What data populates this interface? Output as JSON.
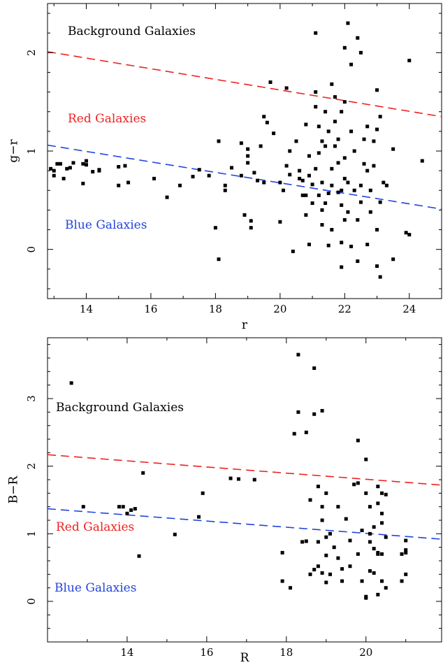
{
  "chart_data": [
    {
      "type": "scatter",
      "xlabel": "r",
      "ylabel": "g−r",
      "xlim": [
        12.8,
        25.0
      ],
      "ylim": [
        -0.5,
        2.5
      ],
      "xticks": [
        14,
        16,
        18,
        20,
        22,
        24
      ],
      "yticks": [
        0,
        1,
        2
      ],
      "annotations": [
        {
          "text": "Background Galaxies",
          "color": "#000000"
        },
        {
          "text": "Red Galaxies",
          "color": "#ee2222"
        },
        {
          "text": "Blue Galaxies",
          "color": "#2244dd"
        }
      ],
      "lines": [
        {
          "name": "red-boundary",
          "color": "#ee2222",
          "x": [
            12.8,
            25.0
          ],
          "y": [
            2.01,
            1.35
          ]
        },
        {
          "name": "blue-boundary",
          "color": "#2244dd",
          "x": [
            12.8,
            25.0
          ],
          "y": [
            1.06,
            0.41
          ]
        }
      ],
      "points": [
        [
          12.9,
          0.82
        ],
        [
          13.0,
          0.8
        ],
        [
          13.1,
          0.87
        ],
        [
          13.2,
          0.87
        ],
        [
          13.0,
          0.75
        ],
        [
          13.3,
          0.72
        ],
        [
          13.4,
          0.82
        ],
        [
          13.5,
          0.83
        ],
        [
          13.6,
          0.88
        ],
        [
          13.9,
          0.87
        ],
        [
          14.0,
          0.9
        ],
        [
          14.0,
          0.86
        ],
        [
          13.9,
          0.67
        ],
        [
          14.2,
          0.79
        ],
        [
          14.4,
          0.8
        ],
        [
          14.4,
          0.81
        ],
        [
          15.0,
          0.84
        ],
        [
          15.0,
          0.65
        ],
        [
          15.2,
          0.85
        ],
        [
          15.3,
          0.68
        ],
        [
          16.1,
          0.72
        ],
        [
          16.5,
          0.53
        ],
        [
          16.9,
          0.65
        ],
        [
          17.3,
          0.74
        ],
        [
          17.5,
          0.81
        ],
        [
          17.8,
          0.75
        ],
        [
          18.0,
          0.22
        ],
        [
          18.1,
          1.1
        ],
        [
          18.1,
          -0.1
        ],
        [
          18.3,
          0.6
        ],
        [
          18.3,
          0.65
        ],
        [
          18.5,
          0.83
        ],
        [
          18.8,
          0.75
        ],
        [
          18.8,
          1.08
        ],
        [
          18.9,
          0.35
        ],
        [
          19.0,
          0.88
        ],
        [
          19.0,
          0.95
        ],
        [
          19.0,
          1.02
        ],
        [
          19.1,
          0.29
        ],
        [
          19.1,
          0.22
        ],
        [
          19.2,
          0.78
        ],
        [
          19.3,
          0.7
        ],
        [
          19.4,
          1.05
        ],
        [
          19.5,
          1.35
        ],
        [
          19.5,
          0.68
        ],
        [
          19.6,
          1.29
        ],
        [
          19.7,
          1.7
        ],
        [
          19.8,
          1.18
        ],
        [
          20.0,
          0.28
        ],
        [
          20.0,
          0.68
        ],
        [
          20.1,
          0.6
        ],
        [
          20.2,
          1.64
        ],
        [
          20.2,
          0.85
        ],
        [
          20.3,
          1.0
        ],
        [
          20.4,
          -0.02
        ],
        [
          20.5,
          1.1
        ],
        [
          20.6,
          0.72
        ],
        [
          20.6,
          0.8
        ],
        [
          20.7,
          0.55
        ],
        [
          20.7,
          0.7
        ],
        [
          20.8,
          0.35
        ],
        [
          20.8,
          0.55
        ],
        [
          20.8,
          1.27
        ],
        [
          20.9,
          0.05
        ],
        [
          20.9,
          0.75
        ],
        [
          21.0,
          0.47
        ],
        [
          21.0,
          0.66
        ],
        [
          21.1,
          1.6
        ],
        [
          21.1,
          1.45
        ],
        [
          21.1,
          0.82
        ],
        [
          21.1,
          2.2
        ],
        [
          21.2,
          1.25
        ],
        [
          21.2,
          0.98
        ],
        [
          21.3,
          0.25
        ],
        [
          21.3,
          0.68
        ],
        [
          21.3,
          1.1
        ],
        [
          21.3,
          0.4
        ],
        [
          21.4,
          1.05
        ],
        [
          21.4,
          1.4
        ],
        [
          21.4,
          0.47
        ],
        [
          21.5,
          0.04
        ],
        [
          21.5,
          0.57
        ],
        [
          21.5,
          1.2
        ],
        [
          21.6,
          0.65
        ],
        [
          21.6,
          1.68
        ],
        [
          21.6,
          0.82
        ],
        [
          21.7,
          1.55
        ],
        [
          21.7,
          1.05
        ],
        [
          21.7,
          1.3
        ],
        [
          21.8,
          0.58
        ],
        [
          21.8,
          0.88
        ],
        [
          21.8,
          1.12
        ],
        [
          21.9,
          1.4
        ],
        [
          21.9,
          0.45
        ],
        [
          21.9,
          -0.18
        ],
        [
          21.9,
          0.07
        ],
        [
          22.0,
          2.05
        ],
        [
          22.0,
          1.5
        ],
        [
          22.0,
          0.93
        ],
        [
          22.0,
          0.72
        ],
        [
          22.1,
          2.3
        ],
        [
          22.1,
          0.68
        ],
        [
          22.1,
          0.38
        ],
        [
          22.2,
          0.03
        ],
        [
          22.2,
          1.88
        ],
        [
          22.2,
          1.2
        ],
        [
          22.3,
          1.0
        ],
        [
          22.3,
          0.6
        ],
        [
          22.4,
          -0.12
        ],
        [
          22.4,
          0.3
        ],
        [
          22.4,
          2.15
        ],
        [
          22.5,
          2.0
        ],
        [
          22.5,
          0.65
        ],
        [
          22.5,
          0.48
        ],
        [
          22.6,
          1.12
        ],
        [
          22.6,
          0.87
        ],
        [
          22.7,
          1.25
        ],
        [
          22.7,
          0.8
        ],
        [
          22.8,
          0.6
        ],
        [
          22.8,
          0.38
        ],
        [
          22.9,
          1.1
        ],
        [
          22.9,
          0.85
        ],
        [
          23.0,
          1.62
        ],
        [
          23.0,
          1.22
        ],
        [
          23.0,
          -0.17
        ],
        [
          23.1,
          1.35
        ],
        [
          23.1,
          -0.28
        ],
        [
          23.1,
          0.48
        ],
        [
          23.2,
          0.68
        ],
        [
          23.3,
          0.65
        ],
        [
          23.5,
          1.02
        ],
        [
          23.5,
          -0.1
        ],
        [
          23.9,
          0.17
        ],
        [
          24.0,
          1.92
        ],
        [
          24.0,
          0.15
        ],
        [
          24.4,
          0.9
        ],
        [
          20.3,
          0.76
        ],
        [
          21.2,
          0.55
        ],
        [
          20.9,
          0.95
        ],
        [
          22.0,
          0.3
        ],
        [
          21.6,
          0.2
        ],
        [
          22.7,
          0.05
        ],
        [
          23.0,
          0.2
        ],
        [
          21.9,
          0.6
        ]
      ]
    },
    {
      "type": "scatter",
      "xlabel": "R",
      "ylabel": "B−R",
      "xlim": [
        12.0,
        21.9
      ],
      "ylim": [
        -0.6,
        3.9
      ],
      "xticks": [
        14,
        16,
        18,
        20
      ],
      "yticks": [
        0,
        1,
        2,
        3
      ],
      "annotations": [
        {
          "text": "Background Galaxies",
          "color": "#000000"
        },
        {
          "text": "Red Galaxies",
          "color": "#ee2222"
        },
        {
          "text": "Blue Galaxies",
          "color": "#2244dd"
        }
      ],
      "lines": [
        {
          "name": "red-boundary",
          "color": "#ee2222",
          "x": [
            12.0,
            21.9
          ],
          "y": [
            2.17,
            1.72
          ]
        },
        {
          "name": "blue-boundary",
          "color": "#2244dd",
          "x": [
            12.0,
            21.9
          ],
          "y": [
            1.37,
            0.92
          ]
        }
      ],
      "points": [
        [
          12.6,
          3.23
        ],
        [
          12.9,
          1.4
        ],
        [
          13.8,
          1.4
        ],
        [
          13.9,
          1.4
        ],
        [
          14.0,
          1.3
        ],
        [
          14.1,
          1.35
        ],
        [
          14.2,
          1.37
        ],
        [
          14.3,
          0.67
        ],
        [
          14.4,
          1.9
        ],
        [
          15.2,
          0.99
        ],
        [
          15.8,
          1.25
        ],
        [
          15.9,
          1.6
        ],
        [
          16.6,
          1.82
        ],
        [
          16.8,
          1.81
        ],
        [
          17.2,
          1.8
        ],
        [
          17.9,
          0.72
        ],
        [
          17.9,
          0.3
        ],
        [
          18.1,
          0.2
        ],
        [
          18.2,
          2.48
        ],
        [
          18.3,
          3.65
        ],
        [
          18.3,
          2.8
        ],
        [
          18.4,
          0.88
        ],
        [
          18.5,
          0.89
        ],
        [
          18.5,
          2.5
        ],
        [
          18.6,
          0.4
        ],
        [
          18.6,
          1.5
        ],
        [
          18.7,
          0.47
        ],
        [
          18.7,
          3.45
        ],
        [
          18.7,
          2.77
        ],
        [
          18.8,
          0.88
        ],
        [
          18.8,
          1.7
        ],
        [
          18.8,
          0.52
        ],
        [
          18.9,
          2.82
        ],
        [
          18.9,
          0.42
        ],
        [
          18.9,
          1.4
        ],
        [
          18.9,
          1.2
        ],
        [
          19.0,
          1.6
        ],
        [
          19.0,
          0.28
        ],
        [
          19.0,
          0.68
        ],
        [
          19.0,
          0.95
        ],
        [
          19.1,
          1.0
        ],
        [
          19.1,
          0.4
        ],
        [
          19.2,
          0.8
        ],
        [
          19.3,
          1.4
        ],
        [
          19.3,
          0.64
        ],
        [
          19.4,
          0.48
        ],
        [
          19.4,
          0.3
        ],
        [
          19.5,
          1.22
        ],
        [
          19.6,
          0.9
        ],
        [
          19.6,
          0.52
        ],
        [
          19.7,
          1.73
        ],
        [
          19.8,
          2.38
        ],
        [
          19.8,
          1.75
        ],
        [
          19.8,
          0.7
        ],
        [
          19.9,
          0.3
        ],
        [
          19.9,
          1.05
        ],
        [
          20.0,
          0.05
        ],
        [
          20.0,
          2.1
        ],
        [
          20.0,
          1.6
        ],
        [
          20.0,
          0.07
        ],
        [
          20.1,
          1.4
        ],
        [
          20.1,
          1.0
        ],
        [
          20.1,
          0.88
        ],
        [
          20.1,
          0.45
        ],
        [
          20.2,
          1.1
        ],
        [
          20.2,
          0.78
        ],
        [
          20.2,
          0.42
        ],
        [
          20.3,
          1.7
        ],
        [
          20.3,
          1.45
        ],
        [
          20.3,
          0.72
        ],
        [
          20.3,
          0.1
        ],
        [
          20.4,
          1.3
        ],
        [
          20.4,
          1.16
        ],
        [
          20.4,
          0.3
        ],
        [
          20.4,
          1.6
        ],
        [
          20.5,
          1.58
        ],
        [
          20.5,
          0.2
        ],
        [
          20.4,
          0.7
        ],
        [
          20.9,
          0.3
        ],
        [
          20.9,
          0.7
        ],
        [
          21.0,
          0.72
        ],
        [
          21.0,
          0.9
        ],
        [
          21.0,
          0.76
        ],
        [
          21.0,
          0.4
        ],
        [
          20.3,
          0.7
        ],
        [
          20.5,
          0.95
        ]
      ]
    }
  ]
}
